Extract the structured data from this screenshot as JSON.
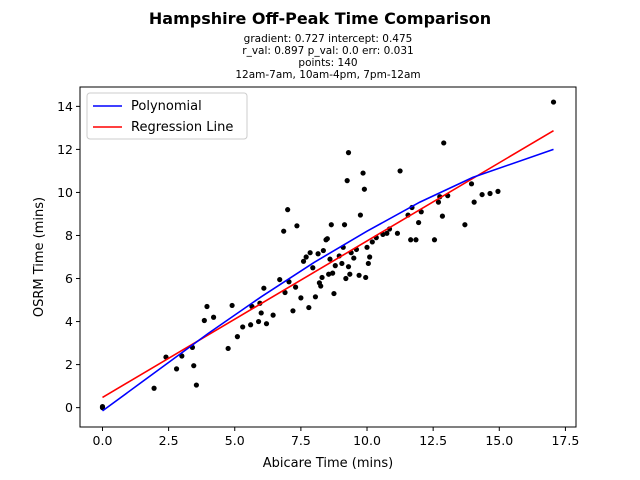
{
  "chart_data": {
    "type": "scatter",
    "title": "Hampshire Off-Peak Time Comparison",
    "stats": {
      "line1": "gradient: 0.727  intercept: 0.475",
      "line2": "r_val: 0.897  p_val: 0.0  err: 0.031",
      "line3": "points: 140",
      "line4": "12am-7am, 10am-4pm, 7pm-12am"
    },
    "xlabel": "Abicare Time (mins)",
    "ylabel": "OSRM Time (mins)",
    "xlim": [
      -0.85,
      17.9
    ],
    "ylim": [
      -0.9,
      14.9
    ],
    "xticks": [
      0.0,
      2.5,
      5.0,
      7.5,
      10.0,
      12.5,
      15.0,
      17.5
    ],
    "xtick_labels": [
      "0.0",
      "2.5",
      "5.0",
      "7.5",
      "10.0",
      "12.5",
      "15.0",
      "17.5"
    ],
    "yticks": [
      0,
      2,
      4,
      6,
      8,
      10,
      12,
      14
    ],
    "ytick_labels": [
      "0",
      "2",
      "4",
      "6",
      "8",
      "10",
      "12",
      "14"
    ],
    "legend": {
      "position": "upper-left",
      "entries": [
        {
          "label": "Polynomial",
          "color": "#0000ff"
        },
        {
          "label": "Regression Line",
          "color": "#ff0000"
        }
      ]
    },
    "points": [
      [
        0.0,
        0.0
      ],
      [
        0.0,
        0.05
      ],
      [
        1.95,
        0.9
      ],
      [
        2.4,
        2.35
      ],
      [
        2.8,
        1.8
      ],
      [
        3.0,
        2.4
      ],
      [
        3.4,
        2.8
      ],
      [
        3.45,
        1.95
      ],
      [
        3.55,
        1.05
      ],
      [
        3.85,
        4.05
      ],
      [
        3.95,
        4.7
      ],
      [
        4.2,
        4.2
      ],
      [
        4.75,
        2.75
      ],
      [
        4.9,
        4.75
      ],
      [
        5.1,
        3.3
      ],
      [
        5.3,
        3.75
      ],
      [
        5.6,
        3.85
      ],
      [
        5.65,
        4.7
      ],
      [
        5.9,
        4.0
      ],
      [
        5.95,
        4.85
      ],
      [
        6.0,
        4.4
      ],
      [
        6.1,
        5.55
      ],
      [
        6.2,
        3.9
      ],
      [
        6.45,
        4.3
      ],
      [
        6.7,
        5.95
      ],
      [
        6.85,
        8.2
      ],
      [
        6.9,
        5.35
      ],
      [
        7.0,
        9.2
      ],
      [
        7.05,
        5.85
      ],
      [
        7.2,
        4.5
      ],
      [
        7.3,
        5.6
      ],
      [
        7.35,
        8.45
      ],
      [
        7.5,
        5.1
      ],
      [
        7.6,
        6.8
      ],
      [
        7.7,
        7.0
      ],
      [
        7.8,
        4.65
      ],
      [
        7.85,
        7.2
      ],
      [
        7.95,
        6.5
      ],
      [
        8.05,
        5.15
      ],
      [
        8.15,
        7.15
      ],
      [
        8.2,
        5.8
      ],
      [
        8.25,
        5.65
      ],
      [
        8.3,
        6.05
      ],
      [
        8.35,
        7.3
      ],
      [
        8.45,
        7.8
      ],
      [
        8.5,
        7.85
      ],
      [
        8.55,
        6.2
      ],
      [
        8.6,
        6.9
      ],
      [
        8.65,
        8.5
      ],
      [
        8.7,
        6.25
      ],
      [
        8.75,
        5.3
      ],
      [
        8.8,
        6.6
      ],
      [
        8.95,
        7.05
      ],
      [
        9.05,
        6.7
      ],
      [
        9.1,
        7.45
      ],
      [
        9.15,
        8.5
      ],
      [
        9.2,
        6.0
      ],
      [
        9.25,
        10.55
      ],
      [
        9.3,
        11.85
      ],
      [
        9.3,
        6.55
      ],
      [
        9.35,
        6.2
      ],
      [
        9.4,
        7.2
      ],
      [
        9.5,
        6.95
      ],
      [
        9.6,
        7.35
      ],
      [
        9.7,
        6.15
      ],
      [
        9.75,
        8.95
      ],
      [
        9.85,
        10.9
      ],
      [
        9.9,
        10.15
      ],
      [
        9.95,
        6.05
      ],
      [
        10.0,
        7.45
      ],
      [
        10.05,
        6.7
      ],
      [
        10.1,
        7.0
      ],
      [
        10.2,
        7.7
      ],
      [
        10.35,
        7.9
      ],
      [
        10.6,
        8.05
      ],
      [
        10.75,
        8.1
      ],
      [
        10.85,
        8.3
      ],
      [
        11.15,
        8.1
      ],
      [
        11.25,
        11.0
      ],
      [
        11.55,
        8.95
      ],
      [
        11.65,
        7.8
      ],
      [
        11.7,
        9.3
      ],
      [
        11.85,
        7.8
      ],
      [
        11.95,
        8.6
      ],
      [
        12.05,
        9.1
      ],
      [
        12.55,
        7.8
      ],
      [
        12.7,
        9.55
      ],
      [
        12.75,
        9.8
      ],
      [
        12.85,
        8.9
      ],
      [
        12.9,
        12.3
      ],
      [
        13.05,
        9.85
      ],
      [
        13.7,
        8.5
      ],
      [
        13.95,
        10.4
      ],
      [
        14.05,
        9.55
      ],
      [
        14.35,
        9.9
      ],
      [
        14.65,
        9.95
      ],
      [
        14.95,
        10.05
      ],
      [
        17.05,
        14.2
      ]
    ],
    "regression_line": {
      "label": "Regression Line",
      "gradient": 0.727,
      "intercept": 0.475,
      "x_range": [
        0.0,
        17.05
      ],
      "color": "#ff0000"
    },
    "polynomial": {
      "label": "Polynomial",
      "x": [
        0.0,
        2.0,
        4.0,
        6.0,
        8.0,
        10.0,
        12.0,
        14.0,
        17.05
      ],
      "y": [
        -0.15,
        1.65,
        3.45,
        5.15,
        6.75,
        8.2,
        9.55,
        10.7,
        12.0
      ],
      "color": "#0000ff"
    },
    "grid": false
  }
}
